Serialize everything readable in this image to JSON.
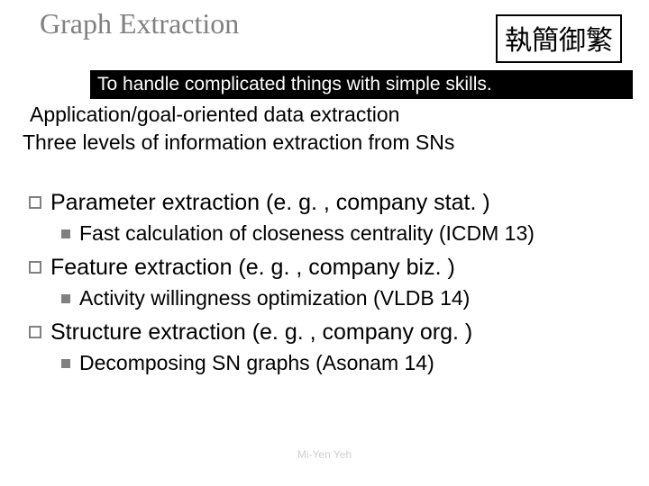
{
  "title": "Graph Extraction",
  "cjk_box": "執簡御繁",
  "cjk_box_border": "#000000",
  "subtitle": {
    "text": "To handle complicated things with simple skills.",
    "bg": "#000000",
    "fg": "#ffffff"
  },
  "intro": {
    "line1": "Application/goal-oriented data extraction",
    "line2": "Three levels of information extraction from SNs"
  },
  "level1_marker_border": "#808080",
  "level2_marker_fill": "#808080",
  "items": [
    {
      "label": "Parameter extraction (e. g. , company stat. )",
      "sub": "Fast calculation of closeness centrality (ICDM 13)"
    },
    {
      "label": "Feature extraction (e. g. , company biz. )",
      "sub": "Activity willingness optimization (VLDB 14)"
    },
    {
      "label": "Structure extraction (e. g. , company org. )",
      "sub": "Decomposing SN graphs (Asonam 14)"
    }
  ],
  "footer_ghost": "Mi-Yen Yeh"
}
